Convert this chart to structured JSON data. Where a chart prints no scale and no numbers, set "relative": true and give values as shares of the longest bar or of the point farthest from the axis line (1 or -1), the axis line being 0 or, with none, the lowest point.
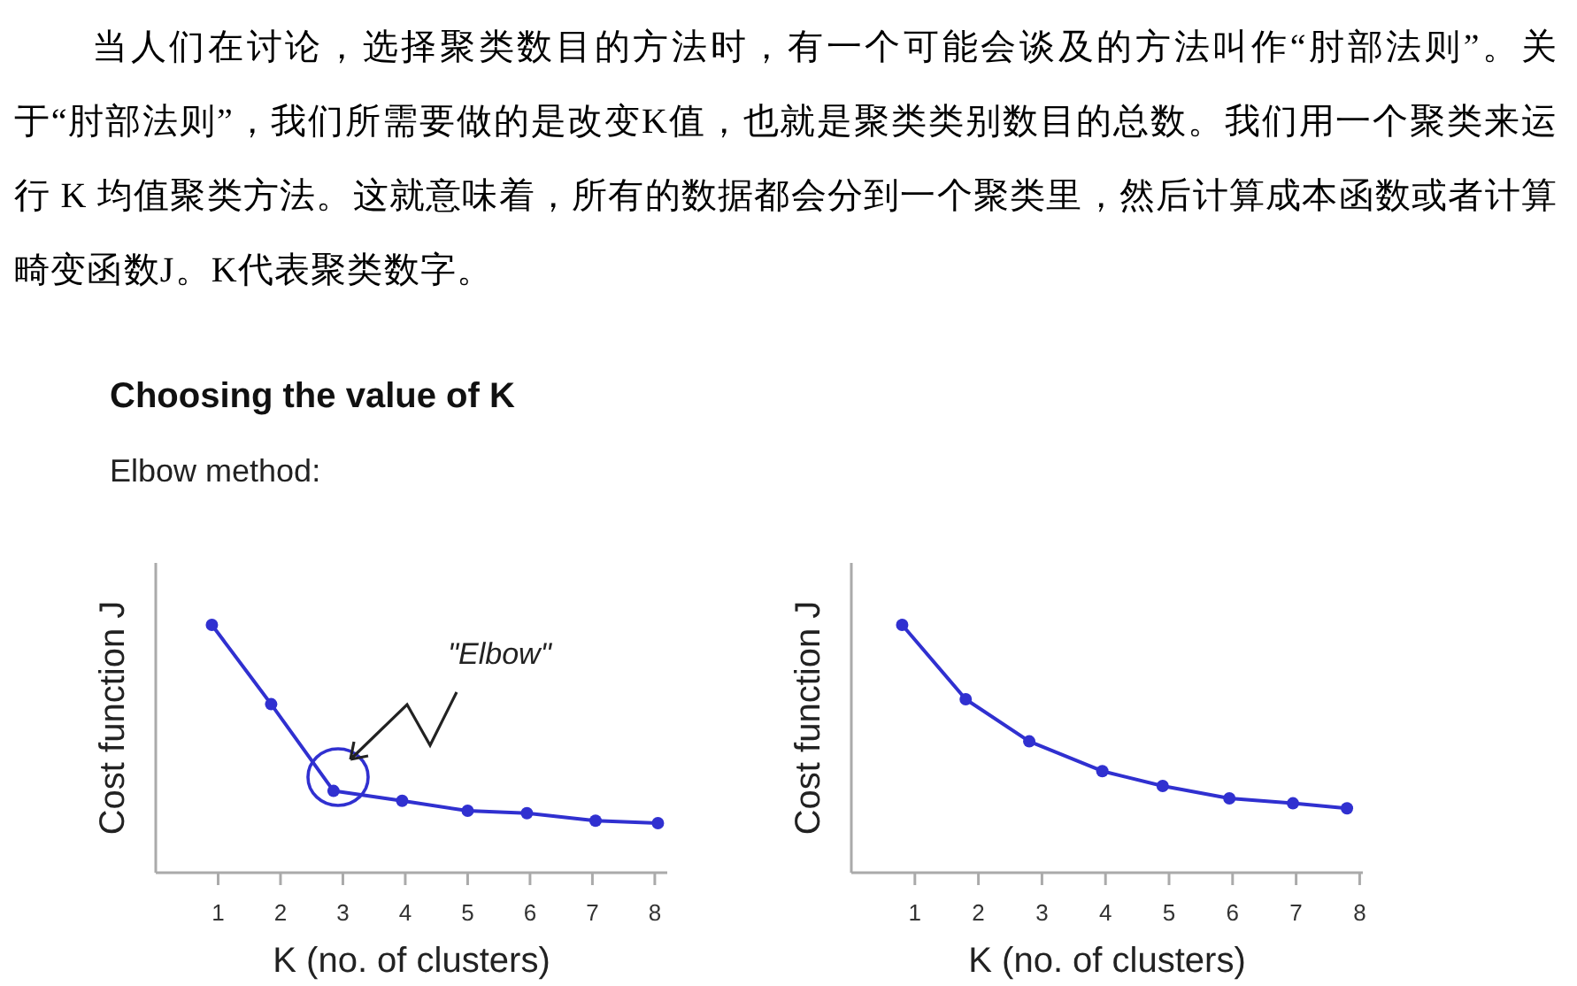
{
  "chart_data": [
    {
      "type": "line",
      "title": "Choosing the value of K",
      "subtitle": "Elbow method:",
      "xlabel": "K (no. of clusters)",
      "ylabel": "Cost function J",
      "relative": true,
      "xlim": [
        0,
        8.2
      ],
      "xticks": [
        1,
        2,
        3,
        4,
        5,
        6,
        7,
        8
      ],
      "marker": "circle",
      "line_style": "solid",
      "series": [
        {
          "color": "#3030d0",
          "x": [
            0.9,
            1.85,
            2.85,
            3.95,
            5,
            5.95,
            7.05,
            8.05
          ],
          "values": [
            1,
            0.68,
            0.33,
            0.29,
            0.25,
            0.24,
            0.21,
            0.2
          ]
        }
      ],
      "annotations": [
        "当人们在讨论，选择聚类数目的方法时，有一个可能会谈及的方法叫作“肘部法则”。关于“肘部法则”，我们所需要做的是改变K值，也就是聚类类别数目的总数。我们用一个聚类来运行 K 均值聚类方法。这就意味着，所有的数据都会分到一个聚类里，然后计算成本函数或者计算畸变函数J。K代表聚类数字。",
        "\"Elbow\""
      ]
    },
    {
      "type": "line",
      "xlabel": "K (no. of clusters)",
      "ylabel": "Cost function J",
      "relative": true,
      "xlim": [
        0,
        8.05
      ],
      "xticks": [
        1,
        2,
        3,
        4,
        5,
        6,
        7,
        8
      ],
      "marker": "circle",
      "line_style": "solid",
      "series": [
        {
          "color": "#3030d0",
          "x": [
            0.8,
            1.8,
            2.8,
            3.95,
            4.9,
            5.95,
            6.95,
            7.8
          ],
          "values": [
            1,
            0.7,
            0.53,
            0.41,
            0.35,
            0.3,
            0.28,
            0.26
          ]
        }
      ]
    }
  ]
}
